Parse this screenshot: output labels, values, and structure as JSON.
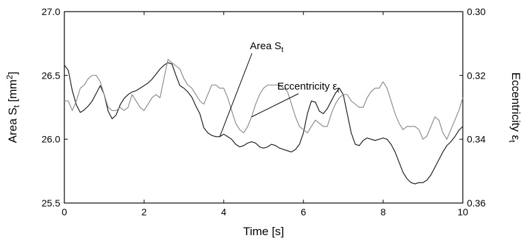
{
  "chart_data": {
    "type": "line",
    "xlabel": "Time [s]",
    "ylabel_left": {
      "base": "Area S",
      "sub": "t",
      "unit_pre": " [mm",
      "unit_sup": "2",
      "unit_post": "]"
    },
    "ylabel_right": {
      "base": "Eccentricity ε",
      "sub": "t"
    },
    "xlim": [
      0,
      10
    ],
    "ylim_left": [
      25.5,
      27.0
    ],
    "ylim_right_top": 0.3,
    "ylim_right_bottom": 0.36,
    "x_ticks": [
      "0",
      "2",
      "4",
      "6",
      "8",
      "10"
    ],
    "y_left_ticks": [
      "25.5",
      "26.0",
      "26.5",
      "27.0"
    ],
    "y_right_ticks": [
      "0.30",
      "0.32",
      "0.34",
      "0.36"
    ],
    "right_axis_inverted": true,
    "grid": false,
    "annotations": [
      {
        "series": "area",
        "base": "Area S",
        "sub": "t"
      },
      {
        "series": "eccentricity",
        "base": "Eccentricity ε",
        "sub": "t"
      }
    ],
    "series": [
      {
        "id": "area",
        "axis": "left",
        "color": "#1a1a1a",
        "x": [
          0.0,
          0.1,
          0.2,
          0.3,
          0.4,
          0.5,
          0.6,
          0.7,
          0.8,
          0.9,
          1.0,
          1.1,
          1.2,
          1.3,
          1.4,
          1.5,
          1.6,
          1.7,
          1.8,
          1.9,
          2.0,
          2.1,
          2.2,
          2.3,
          2.4,
          2.5,
          2.6,
          2.7,
          2.8,
          2.9,
          3.0,
          3.1,
          3.2,
          3.3,
          3.4,
          3.5,
          3.6,
          3.7,
          3.8,
          3.9,
          4.0,
          4.1,
          4.2,
          4.3,
          4.4,
          4.5,
          4.6,
          4.7,
          4.8,
          4.9,
          5.0,
          5.1,
          5.2,
          5.3,
          5.4,
          5.5,
          5.6,
          5.7,
          5.8,
          5.9,
          6.0,
          6.1,
          6.2,
          6.3,
          6.4,
          6.5,
          6.6,
          6.7,
          6.8,
          6.9,
          7.0,
          7.1,
          7.2,
          7.3,
          7.4,
          7.5,
          7.6,
          7.7,
          7.8,
          7.9,
          8.0,
          8.1,
          8.2,
          8.3,
          8.4,
          8.5,
          8.6,
          8.7,
          8.8,
          8.9,
          9.0,
          9.1,
          9.2,
          9.3,
          9.4,
          9.5,
          9.6,
          9.7,
          9.8,
          9.9,
          10.0
        ],
        "values": [
          26.58,
          26.54,
          26.38,
          26.27,
          26.21,
          26.23,
          26.26,
          26.3,
          26.36,
          26.42,
          26.35,
          26.22,
          26.16,
          26.19,
          26.27,
          26.32,
          26.35,
          26.37,
          26.38,
          26.4,
          26.42,
          26.44,
          26.47,
          26.51,
          26.55,
          26.58,
          26.6,
          26.59,
          26.5,
          26.42,
          26.4,
          26.37,
          26.33,
          26.26,
          26.2,
          26.09,
          26.05,
          26.03,
          26.02,
          26.02,
          26.04,
          26.02,
          26.0,
          25.96,
          25.94,
          25.95,
          25.97,
          25.98,
          25.97,
          25.94,
          25.93,
          25.94,
          25.96,
          25.95,
          25.93,
          25.92,
          25.91,
          25.9,
          25.92,
          25.96,
          26.05,
          26.2,
          26.3,
          26.29,
          26.22,
          26.2,
          26.24,
          26.3,
          26.36,
          26.4,
          26.35,
          26.2,
          26.05,
          25.96,
          25.95,
          25.99,
          26.01,
          26.0,
          25.99,
          26.0,
          26.01,
          26.0,
          25.96,
          25.9,
          25.82,
          25.74,
          25.69,
          25.66,
          25.65,
          25.66,
          25.66,
          25.68,
          25.72,
          25.78,
          25.84,
          25.9,
          25.95,
          25.98,
          26.02,
          26.07,
          26.1
        ]
      },
      {
        "id": "eccentricity",
        "axis": "right",
        "color": "#8a8a8a",
        "x": [
          0.0,
          0.1,
          0.2,
          0.3,
          0.4,
          0.5,
          0.6,
          0.7,
          0.8,
          0.9,
          1.0,
          1.1,
          1.2,
          1.3,
          1.4,
          1.5,
          1.6,
          1.7,
          1.8,
          1.9,
          2.0,
          2.1,
          2.2,
          2.3,
          2.4,
          2.5,
          2.6,
          2.7,
          2.8,
          2.9,
          3.0,
          3.1,
          3.2,
          3.3,
          3.4,
          3.5,
          3.6,
          3.7,
          3.8,
          3.9,
          4.0,
          4.1,
          4.2,
          4.3,
          4.4,
          4.5,
          4.6,
          4.7,
          4.8,
          4.9,
          5.0,
          5.1,
          5.2,
          5.3,
          5.4,
          5.5,
          5.6,
          5.7,
          5.8,
          5.9,
          6.0,
          6.1,
          6.2,
          6.3,
          6.4,
          6.5,
          6.6,
          6.7,
          6.8,
          6.9,
          7.0,
          7.1,
          7.2,
          7.3,
          7.4,
          7.5,
          7.6,
          7.7,
          7.8,
          7.9,
          8.0,
          8.1,
          8.2,
          8.3,
          8.4,
          8.5,
          8.6,
          8.7,
          8.8,
          8.9,
          9.0,
          9.1,
          9.2,
          9.3,
          9.4,
          9.5,
          9.6,
          9.7,
          9.8,
          9.9,
          10.0
        ],
        "values": [
          0.328,
          0.328,
          0.331,
          0.328,
          0.324,
          0.323,
          0.321,
          0.32,
          0.32,
          0.322,
          0.326,
          0.33,
          0.331,
          0.331,
          0.33,
          0.331,
          0.33,
          0.326,
          0.328,
          0.33,
          0.331,
          0.329,
          0.327,
          0.326,
          0.327,
          0.321,
          0.315,
          0.316,
          0.317,
          0.318,
          0.321,
          0.323,
          0.324,
          0.326,
          0.328,
          0.329,
          0.326,
          0.323,
          0.323,
          0.324,
          0.324,
          0.327,
          0.331,
          0.335,
          0.337,
          0.338,
          0.336,
          0.333,
          0.329,
          0.326,
          0.324,
          0.323,
          0.323,
          0.323,
          0.323,
          0.324,
          0.325,
          0.329,
          0.333,
          0.336,
          0.337,
          0.338,
          0.336,
          0.334,
          0.335,
          0.336,
          0.336,
          0.332,
          0.329,
          0.327,
          0.326,
          0.326,
          0.328,
          0.329,
          0.33,
          0.33,
          0.327,
          0.325,
          0.324,
          0.324,
          0.322,
          0.324,
          0.328,
          0.332,
          0.335,
          0.337,
          0.336,
          0.336,
          0.336,
          0.337,
          0.34,
          0.339,
          0.336,
          0.333,
          0.334,
          0.338,
          0.34,
          0.337,
          0.334,
          0.331,
          0.327
        ]
      }
    ]
  }
}
